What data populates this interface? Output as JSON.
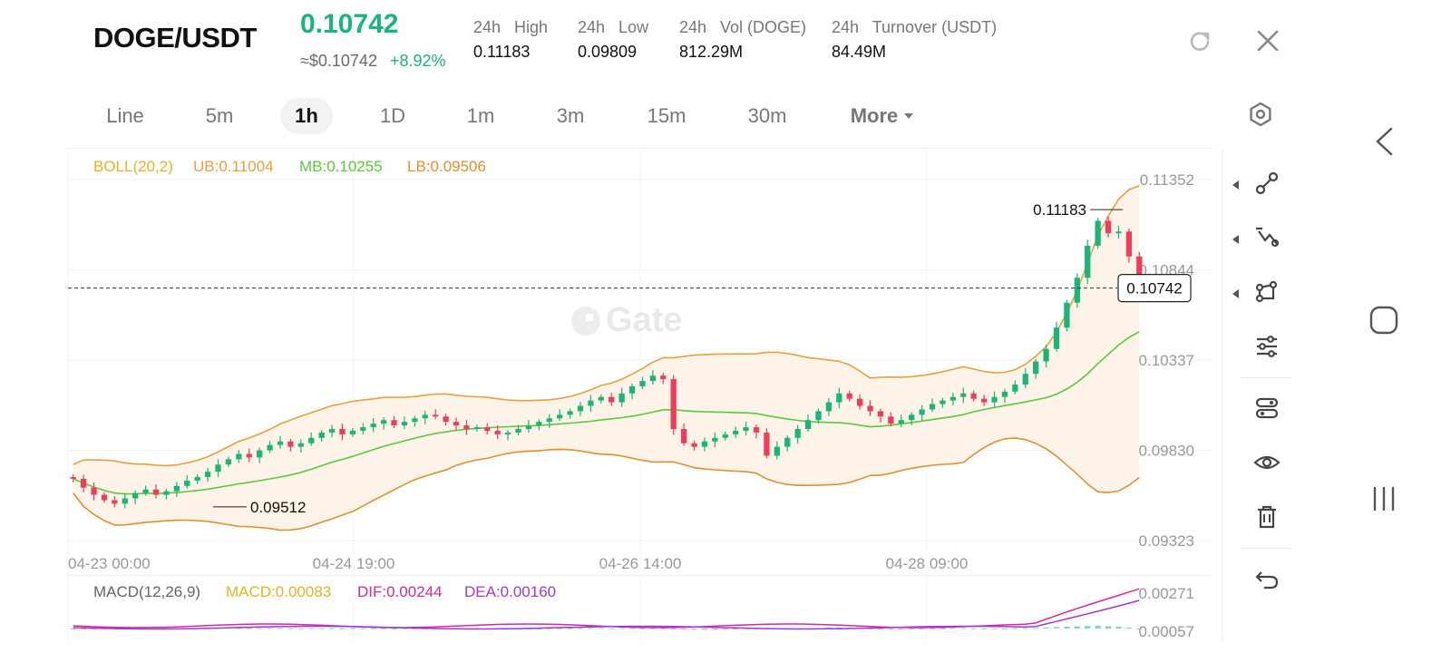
{
  "header": {
    "pair": "DOGE/USDT",
    "price": "0.10742",
    "usd_price": "≈$0.10742",
    "change": "+8.92%",
    "stats": [
      {
        "label": "24h   High",
        "value": "0.11183"
      },
      {
        "label": "24h   Low",
        "value": "0.09809"
      },
      {
        "label": "24h   Vol (DOGE)",
        "value": "812.29M"
      },
      {
        "label": "24h   Turnover (USDT)",
        "value": "84.49M"
      }
    ],
    "icons": [
      "refresh-icon",
      "close-icon"
    ]
  },
  "timeframes": [
    "Line",
    "5m",
    "1h",
    "1D",
    "1m",
    "3m",
    "15m",
    "30m"
  ],
  "active_timeframe": "1h",
  "more_label": "More",
  "boll": {
    "name": "BOLL(20,2)",
    "ub": "UB:0.11004",
    "mb": "MB:0.10255",
    "lb": "LB:0.09506"
  },
  "macd": {
    "name": "MACD(12,26,9)",
    "macd": "MACD:0.00083",
    "dif": "DIF:0.00244",
    "dea": "DEA:0.00160"
  },
  "colors": {
    "up": "#1bb47b",
    "down": "#ef3d59",
    "boll_ub": "#e8a13a",
    "boll_mb": "#5cc83b",
    "boll_lb": "#e0902c",
    "dif": "#d6279b",
    "dea": "#9b3bd6",
    "macd": "#e6b422",
    "accent": "#1bb47b"
  },
  "chart_data": {
    "type": "candlestick",
    "y_axis_ticks": [
      "0.11352",
      "0.10844",
      "0.10337",
      "0.09830",
      "0.09323"
    ],
    "ylim": [
      0.09323,
      0.11352
    ],
    "x_axis_ticks": [
      "04-23 00:00",
      "04-24 19:00",
      "04-26 14:00",
      "04-28 09:00"
    ],
    "high_label": "0.11183",
    "low_label": "0.09512",
    "last_price_label": "0.10742",
    "macd_axis_ticks": [
      "0.00271",
      "0.00057"
    ],
    "watermark": "Gate",
    "close_series": [
      0.0967,
      0.0962,
      0.0958,
      0.0955,
      0.0953,
      0.0956,
      0.0959,
      0.0961,
      0.0958,
      0.096,
      0.0963,
      0.0966,
      0.0968,
      0.0971,
      0.0975,
      0.0978,
      0.0981,
      0.0979,
      0.0983,
      0.0986,
      0.0988,
      0.0985,
      0.0987,
      0.099,
      0.0993,
      0.0995,
      0.0992,
      0.0994,
      0.0996,
      0.0998,
      0.1,
      0.0997,
      0.0999,
      0.1001,
      0.1003,
      0.1002,
      0.0999,
      0.0997,
      0.0995,
      0.0996,
      0.0994,
      0.0992,
      0.0993,
      0.0995,
      0.0997,
      0.0999,
      0.1001,
      0.1003,
      0.1005,
      0.1008,
      0.1011,
      0.1013,
      0.101,
      0.1015,
      0.1019,
      0.1022,
      0.1025,
      0.1023,
      0.0995,
      0.0987,
      0.0985,
      0.0988,
      0.099,
      0.0992,
      0.0994,
      0.0996,
      0.0993,
      0.098,
      0.0985,
      0.099,
      0.0995,
      0.1,
      0.1005,
      0.101,
      0.1015,
      0.1012,
      0.1008,
      0.1005,
      0.1002,
      0.0998,
      0.1,
      0.1003,
      0.1006,
      0.1009,
      0.1011,
      0.1013,
      0.1015,
      0.1012,
      0.101,
      0.1013,
      0.1016,
      0.102,
      0.1026,
      0.1033,
      0.104,
      0.1052,
      0.1066,
      0.108,
      0.1098,
      0.1112,
      0.1105,
      0.1106,
      0.1092,
      0.1074
    ]
  },
  "toolbar": {
    "icons": [
      "line-tool-icon",
      "trend-tool-icon",
      "shape-tool-icon",
      "indicator-settings-icon",
      "compare-icon",
      "visibility-icon",
      "delete-icon",
      "undo-icon"
    ]
  },
  "system_nav": [
    "back-nav-icon",
    "home-nav-icon",
    "recents-nav-icon"
  ]
}
